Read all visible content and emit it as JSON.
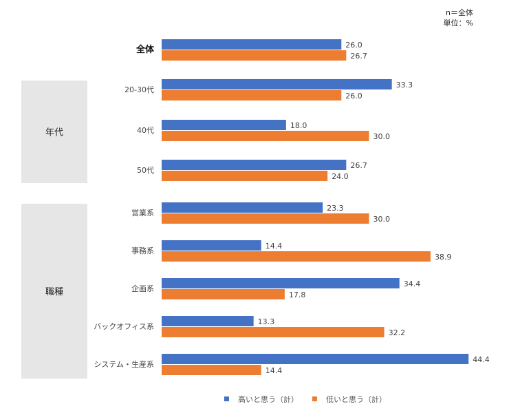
{
  "note": {
    "n": "n＝全体",
    "unit": "単位：%"
  },
  "chart_data": {
    "type": "bar",
    "orientation": "horizontal",
    "categories": [
      "全体",
      "20-30代",
      "40代",
      "50代",
      "営業系",
      "事務系",
      "企画系",
      "バックオフィス系",
      "システム・生産系"
    ],
    "groups": [
      {
        "label": "年代",
        "categories": [
          "20-30代",
          "40代",
          "50代"
        ]
      },
      {
        "label": "職種",
        "categories": [
          "営業系",
          "事務系",
          "企画系",
          "バックオフィス系",
          "システム・生産系"
        ]
      }
    ],
    "series": [
      {
        "name": "高いと思う（計）",
        "color": "#4472C4",
        "values": [
          26.0,
          33.3,
          18.0,
          26.7,
          23.3,
          14.4,
          34.4,
          13.3,
          44.4
        ]
      },
      {
        "name": "低いと思う（計）",
        "color": "#ED7D31",
        "values": [
          26.7,
          26.0,
          30.0,
          24.0,
          30.0,
          38.9,
          17.8,
          32.2,
          14.4
        ]
      }
    ],
    "legend": "bottom",
    "grid": false
  }
}
